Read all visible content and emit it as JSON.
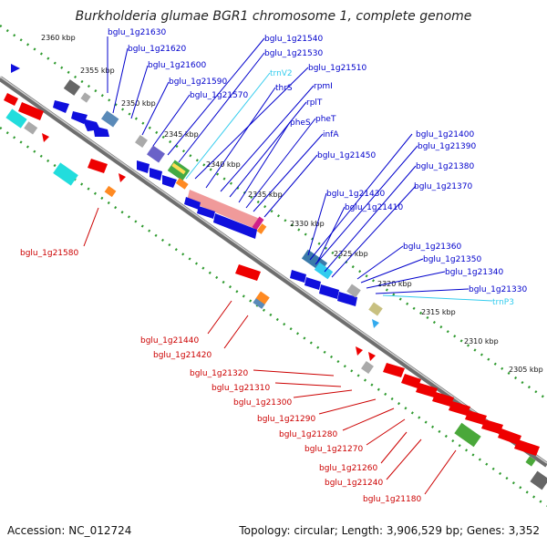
{
  "title": "Burkholderia glumae BGR1 chromosome 1, complete genome",
  "footer": {
    "accession": "Accession: NC_012724",
    "topology": "Topology: circular; Length: 3,906,529 bp; Genes: 3,352"
  },
  "colors": {
    "forward_label": "#0000cc",
    "reverse_label": "#cc0000",
    "rna_label": "#33ccee",
    "backbone": "#888888"
  },
  "ruler_ticks": [
    "2360 kbp",
    "2355 kbp",
    "2350 kbp",
    "2345 kbp",
    "2340 kbp",
    "2335 kbp",
    "2330 kbp",
    "2325 kbp",
    "2320 kbp",
    "2315 kbp",
    "2310 kbp",
    "2305 kbp"
  ],
  "forward_labels": [
    "bglu_1g21630",
    "bglu_1g21620",
    "bglu_1g21600",
    "bglu_1g21590",
    "bglu_1g21570",
    "bglu_1g21540",
    "bglu_1g21530",
    "trnV2",
    "bglu_1g21510",
    "thrS",
    "rpmI",
    "rplT",
    "pheS",
    "pheT",
    "infA",
    "bglu_1g21450",
    "bglu_1g21400",
    "bglu_1g21390",
    "bglu_1g21380",
    "bglu_1g21370",
    "bglu_1g21430",
    "bglu_1g21410",
    "bglu_1g21360",
    "bglu_1g21350",
    "bglu_1g21340",
    "bglu_1g21330",
    "trnP3"
  ],
  "reverse_labels": [
    "bglu_1g21580",
    "bglu_1g21440",
    "bglu_1g21420",
    "bglu_1g21320",
    "bglu_1g21310",
    "bglu_1g21300",
    "bglu_1g21290",
    "bglu_1g21280",
    "bglu_1g21270",
    "bglu_1g21260",
    "bglu_1g21240",
    "bglu_1g21180"
  ]
}
